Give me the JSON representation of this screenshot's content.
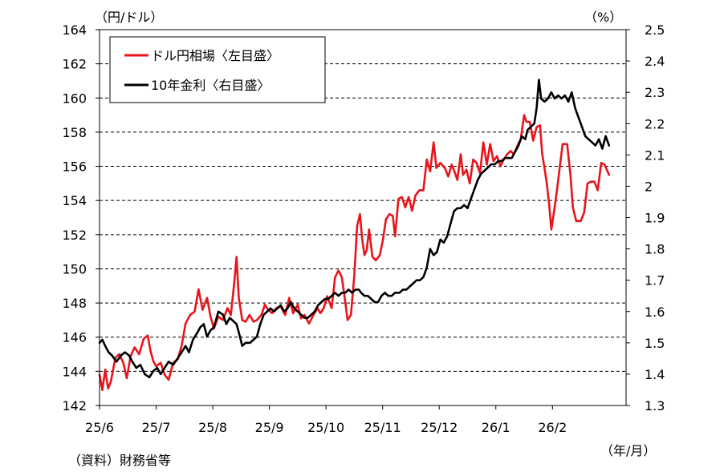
{
  "chart_data": {
    "type": "line",
    "left_unit": "（円/ドル）",
    "right_unit": "（%）",
    "x_unit": "（年/月）",
    "source_note": "（資料）財務省等",
    "x_categories": [
      "25/6",
      "25/7",
      "25/8",
      "25/9",
      "25/10",
      "25/11",
      "25/12",
      "26/1",
      "26/2"
    ],
    "x_range": [
      0,
      9.3
    ],
    "left_axis": {
      "min": 142,
      "max": 164,
      "ticks": [
        142,
        144,
        146,
        148,
        150,
        152,
        154,
        156,
        158,
        160,
        162,
        164
      ]
    },
    "right_axis": {
      "min": 1.3,
      "max": 2.5,
      "ticks": [
        "1.3",
        "1.4",
        "1.5",
        "1.6",
        "1.7",
        "1.8",
        "1.9",
        "2",
        "2.1",
        "2.2",
        "2.3",
        "2.4",
        "2.5"
      ],
      "values": [
        1.3,
        1.4,
        1.5,
        1.6,
        1.7,
        1.8,
        1.9,
        2.0,
        2.1,
        2.2,
        2.3,
        2.4,
        2.5
      ]
    },
    "grid": "horizontal-dashed",
    "legend_position": "top-left",
    "series": [
      {
        "name": "ドル円相場〈左目盛〉",
        "axis": "left",
        "color": "#e8141b",
        "points": [
          [
            0.0,
            143.8
          ],
          [
            0.05,
            142.9
          ],
          [
            0.1,
            144.1
          ],
          [
            0.15,
            143.0
          ],
          [
            0.2,
            143.4
          ],
          [
            0.28,
            144.8
          ],
          [
            0.35,
            145.0
          ],
          [
            0.42,
            144.5
          ],
          [
            0.48,
            143.6
          ],
          [
            0.55,
            144.9
          ],
          [
            0.62,
            145.4
          ],
          [
            0.7,
            145.0
          ],
          [
            0.78,
            145.9
          ],
          [
            0.85,
            146.1
          ],
          [
            0.9,
            145.2
          ],
          [
            0.95,
            144.6
          ],
          [
            1.0,
            144.3
          ],
          [
            1.08,
            144.5
          ],
          [
            1.15,
            143.8
          ],
          [
            1.22,
            143.5
          ],
          [
            1.3,
            144.5
          ],
          [
            1.38,
            144.7
          ],
          [
            1.45,
            145.5
          ],
          [
            1.52,
            146.8
          ],
          [
            1.6,
            147.3
          ],
          [
            1.68,
            147.5
          ],
          [
            1.75,
            148.8
          ],
          [
            1.82,
            147.6
          ],
          [
            1.9,
            148.3
          ],
          [
            1.96,
            147.2
          ],
          [
            2.02,
            146.5
          ],
          [
            2.1,
            147.2
          ],
          [
            2.18,
            147.0
          ],
          [
            2.26,
            147.7
          ],
          [
            2.32,
            147.3
          ],
          [
            2.38,
            149.2
          ],
          [
            2.42,
            150.7
          ],
          [
            2.46,
            148.3
          ],
          [
            2.52,
            147.0
          ],
          [
            2.58,
            146.9
          ],
          [
            2.65,
            147.3
          ],
          [
            2.72,
            146.9
          ],
          [
            2.78,
            147.0
          ],
          [
            2.86,
            147.3
          ],
          [
            2.92,
            147.9
          ],
          [
            2.98,
            147.6
          ],
          [
            3.05,
            147.4
          ],
          [
            3.12,
            147.7
          ],
          [
            3.2,
            147.8
          ],
          [
            3.28,
            147.3
          ],
          [
            3.35,
            148.3
          ],
          [
            3.42,
            147.4
          ],
          [
            3.5,
            147.9
          ],
          [
            3.56,
            147.1
          ],
          [
            3.62,
            147.3
          ],
          [
            3.7,
            146.8
          ],
          [
            3.78,
            147.3
          ],
          [
            3.85,
            147.7
          ],
          [
            3.9,
            147.4
          ],
          [
            3.96,
            147.7
          ],
          [
            4.02,
            148.4
          ],
          [
            4.1,
            147.7
          ],
          [
            4.16,
            149.5
          ],
          [
            4.22,
            149.9
          ],
          [
            4.28,
            149.5
          ],
          [
            4.34,
            148.1
          ],
          [
            4.38,
            147.0
          ],
          [
            4.44,
            147.3
          ],
          [
            4.5,
            149.6
          ],
          [
            4.55,
            152.5
          ],
          [
            4.6,
            153.2
          ],
          [
            4.64,
            151.7
          ],
          [
            4.68,
            150.8
          ],
          [
            4.72,
            151.1
          ],
          [
            4.76,
            152.3
          ],
          [
            4.82,
            150.7
          ],
          [
            4.88,
            150.5
          ],
          [
            4.95,
            150.8
          ],
          [
            5.0,
            151.6
          ],
          [
            5.06,
            152.9
          ],
          [
            5.12,
            153.2
          ],
          [
            5.18,
            153.1
          ],
          [
            5.22,
            151.9
          ],
          [
            5.28,
            154.1
          ],
          [
            5.34,
            154.2
          ],
          [
            5.4,
            153.6
          ],
          [
            5.46,
            154.2
          ],
          [
            5.52,
            153.4
          ],
          [
            5.58,
            154.3
          ],
          [
            5.65,
            154.6
          ],
          [
            5.72,
            154.6
          ],
          [
            5.78,
            156.4
          ],
          [
            5.84,
            155.7
          ],
          [
            5.9,
            157.4
          ],
          [
            5.95,
            155.9
          ],
          [
            6.02,
            156.2
          ],
          [
            6.1,
            155.9
          ],
          [
            6.16,
            155.4
          ],
          [
            6.22,
            156.1
          ],
          [
            6.28,
            155.6
          ],
          [
            6.32,
            155.2
          ],
          [
            6.38,
            156.7
          ],
          [
            6.42,
            155.5
          ],
          [
            6.48,
            155.8
          ],
          [
            6.54,
            155.0
          ],
          [
            6.6,
            156.4
          ],
          [
            6.66,
            156.2
          ],
          [
            6.72,
            155.6
          ],
          [
            6.78,
            157.4
          ],
          [
            6.84,
            156.1
          ],
          [
            6.9,
            157.3
          ],
          [
            6.96,
            156.3
          ],
          [
            7.02,
            156.6
          ],
          [
            7.08,
            156.0
          ],
          [
            7.14,
            156.4
          ],
          [
            7.2,
            156.7
          ],
          [
            7.26,
            156.9
          ],
          [
            7.32,
            156.7
          ],
          [
            7.38,
            157.2
          ],
          [
            7.44,
            157.6
          ],
          [
            7.5,
            159.0
          ],
          [
            7.54,
            158.6
          ],
          [
            7.6,
            158.6
          ],
          [
            7.66,
            157.5
          ],
          [
            7.72,
            158.3
          ],
          [
            7.78,
            158.4
          ],
          [
            7.82,
            156.7
          ],
          [
            7.86,
            155.9
          ],
          [
            7.9,
            155.0
          ],
          [
            7.94,
            153.8
          ],
          [
            7.98,
            152.3
          ],
          [
            8.03,
            153.4
          ],
          [
            8.08,
            154.6
          ],
          [
            8.13,
            156.0
          ],
          [
            8.18,
            157.3
          ],
          [
            8.26,
            157.3
          ],
          [
            8.32,
            155.4
          ],
          [
            8.36,
            153.6
          ],
          [
            8.42,
            152.8
          ],
          [
            8.5,
            152.8
          ],
          [
            8.56,
            153.3
          ],
          [
            8.62,
            155.0
          ],
          [
            8.68,
            155.1
          ],
          [
            8.74,
            155.1
          ],
          [
            8.8,
            154.6
          ],
          [
            8.86,
            156.2
          ],
          [
            8.92,
            156.1
          ],
          [
            9.0,
            155.5
          ]
        ]
      },
      {
        "name": "10年金利〈右目盛〉",
        "axis": "right",
        "color": "#000000",
        "points": [
          [
            0.0,
            1.5
          ],
          [
            0.05,
            1.51
          ],
          [
            0.1,
            1.49
          ],
          [
            0.16,
            1.47
          ],
          [
            0.22,
            1.46
          ],
          [
            0.3,
            1.44
          ],
          [
            0.38,
            1.46
          ],
          [
            0.45,
            1.47
          ],
          [
            0.52,
            1.46
          ],
          [
            0.58,
            1.44
          ],
          [
            0.65,
            1.42
          ],
          [
            0.72,
            1.43
          ],
          [
            0.8,
            1.4
          ],
          [
            0.88,
            1.39
          ],
          [
            0.95,
            1.41
          ],
          [
            1.02,
            1.42
          ],
          [
            1.08,
            1.4
          ],
          [
            1.15,
            1.42
          ],
          [
            1.22,
            1.44
          ],
          [
            1.3,
            1.43
          ],
          [
            1.38,
            1.45
          ],
          [
            1.45,
            1.47
          ],
          [
            1.52,
            1.49
          ],
          [
            1.58,
            1.47
          ],
          [
            1.65,
            1.51
          ],
          [
            1.72,
            1.53
          ],
          [
            1.78,
            1.55
          ],
          [
            1.84,
            1.56
          ],
          [
            1.9,
            1.52
          ],
          [
            1.96,
            1.54
          ],
          [
            2.02,
            1.55
          ],
          [
            2.1,
            1.6
          ],
          [
            2.18,
            1.59
          ],
          [
            2.24,
            1.56
          ],
          [
            2.3,
            1.58
          ],
          [
            2.36,
            1.57
          ],
          [
            2.42,
            1.56
          ],
          [
            2.48,
            1.52
          ],
          [
            2.52,
            1.49
          ],
          [
            2.58,
            1.5
          ],
          [
            2.66,
            1.5
          ],
          [
            2.72,
            1.51
          ],
          [
            2.78,
            1.52
          ],
          [
            2.84,
            1.56
          ],
          [
            2.9,
            1.59
          ],
          [
            2.96,
            1.6
          ],
          [
            3.02,
            1.61
          ],
          [
            3.08,
            1.6
          ],
          [
            3.14,
            1.61
          ],
          [
            3.2,
            1.62
          ],
          [
            3.26,
            1.6
          ],
          [
            3.32,
            1.61
          ],
          [
            3.38,
            1.63
          ],
          [
            3.44,
            1.61
          ],
          [
            3.5,
            1.6
          ],
          [
            3.56,
            1.59
          ],
          [
            3.62,
            1.58
          ],
          [
            3.68,
            1.58
          ],
          [
            3.74,
            1.59
          ],
          [
            3.8,
            1.6
          ],
          [
            3.86,
            1.62
          ],
          [
            3.92,
            1.63
          ],
          [
            3.98,
            1.64
          ],
          [
            4.04,
            1.64
          ],
          [
            4.1,
            1.65
          ],
          [
            4.16,
            1.66
          ],
          [
            4.22,
            1.65
          ],
          [
            4.28,
            1.66
          ],
          [
            4.34,
            1.66
          ],
          [
            4.4,
            1.67
          ],
          [
            4.46,
            1.66
          ],
          [
            4.52,
            1.67
          ],
          [
            4.58,
            1.67
          ],
          [
            4.62,
            1.66
          ],
          [
            4.68,
            1.65
          ],
          [
            4.74,
            1.65
          ],
          [
            4.8,
            1.64
          ],
          [
            4.86,
            1.63
          ],
          [
            4.92,
            1.63
          ],
          [
            4.98,
            1.65
          ],
          [
            5.04,
            1.66
          ],
          [
            5.1,
            1.65
          ],
          [
            5.16,
            1.65
          ],
          [
            5.22,
            1.66
          ],
          [
            5.3,
            1.66
          ],
          [
            5.36,
            1.67
          ],
          [
            5.42,
            1.67
          ],
          [
            5.48,
            1.68
          ],
          [
            5.54,
            1.69
          ],
          [
            5.6,
            1.7
          ],
          [
            5.66,
            1.7
          ],
          [
            5.72,
            1.71
          ],
          [
            5.78,
            1.74
          ],
          [
            5.84,
            1.8
          ],
          [
            5.9,
            1.78
          ],
          [
            5.96,
            1.79
          ],
          [
            6.02,
            1.83
          ],
          [
            6.08,
            1.82
          ],
          [
            6.14,
            1.84
          ],
          [
            6.2,
            1.88
          ],
          [
            6.26,
            1.92
          ],
          [
            6.32,
            1.93
          ],
          [
            6.38,
            1.93
          ],
          [
            6.44,
            1.94
          ],
          [
            6.5,
            1.93
          ],
          [
            6.56,
            1.96
          ],
          [
            6.62,
            1.99
          ],
          [
            6.68,
            2.02
          ],
          [
            6.74,
            2.04
          ],
          [
            6.8,
            2.05
          ],
          [
            6.86,
            2.06
          ],
          [
            6.92,
            2.07
          ],
          [
            6.98,
            2.07
          ],
          [
            7.04,
            2.08
          ],
          [
            7.1,
            2.08
          ],
          [
            7.16,
            2.09
          ],
          [
            7.22,
            2.09
          ],
          [
            7.28,
            2.09
          ],
          [
            7.34,
            2.11
          ],
          [
            7.4,
            2.13
          ],
          [
            7.46,
            2.16
          ],
          [
            7.52,
            2.15
          ],
          [
            7.56,
            2.18
          ],
          [
            7.62,
            2.19
          ],
          [
            7.68,
            2.2
          ],
          [
            7.72,
            2.25
          ],
          [
            7.76,
            2.34
          ],
          [
            7.8,
            2.28
          ],
          [
            7.86,
            2.27
          ],
          [
            7.92,
            2.28
          ],
          [
            7.98,
            2.3
          ],
          [
            8.04,
            2.28
          ],
          [
            8.1,
            2.29
          ],
          [
            8.16,
            2.28
          ],
          [
            8.22,
            2.29
          ],
          [
            8.28,
            2.27
          ],
          [
            8.34,
            2.3
          ],
          [
            8.4,
            2.25
          ],
          [
            8.46,
            2.22
          ],
          [
            8.52,
            2.19
          ],
          [
            8.58,
            2.16
          ],
          [
            8.64,
            2.15
          ],
          [
            8.7,
            2.14
          ],
          [
            8.76,
            2.13
          ],
          [
            8.82,
            2.15
          ],
          [
            8.88,
            2.12
          ],
          [
            8.94,
            2.16
          ],
          [
            9.0,
            2.13
          ]
        ]
      }
    ]
  }
}
